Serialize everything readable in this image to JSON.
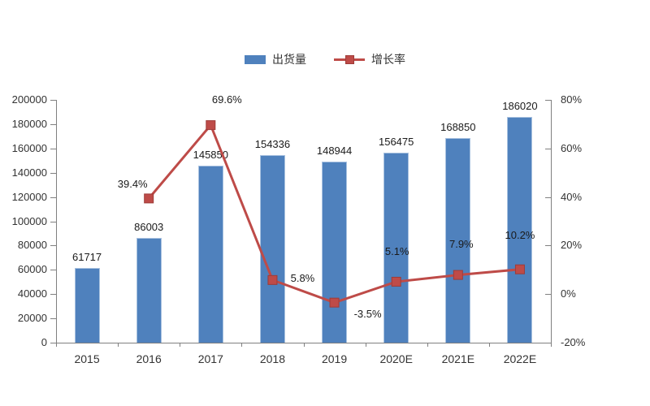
{
  "chart_data": {
    "type": "combo-bar-line",
    "title": "",
    "categories": [
      "2015",
      "2016",
      "2017",
      "2018",
      "2019",
      "2020E",
      "2021E",
      "2022E"
    ],
    "series": [
      {
        "name": "出货量",
        "type": "bar",
        "axis": "left",
        "color": "#4F81BD",
        "values": [
          61717,
          86003,
          145850,
          154336,
          148944,
          156475,
          168850,
          186020
        ],
        "labels": [
          "61717",
          "86003",
          "145850",
          "154336",
          "148944",
          "156475",
          "168850",
          "186020"
        ]
      },
      {
        "name": "增长率",
        "type": "line",
        "axis": "right",
        "color": "#BE4B48",
        "values": [
          null,
          39.4,
          69.6,
          5.8,
          -3.5,
          5.1,
          7.9,
          10.2
        ],
        "labels": [
          null,
          "39.4%",
          "69.6%",
          "5.8%",
          "-3.5%",
          "5.1%",
          "7.9%",
          "10.2%"
        ],
        "label_offsets": [
          null,
          {
            "dx": -20,
            "dy": -17
          },
          {
            "dx": 20,
            "dy": -31
          },
          {
            "dx": 37,
            "dy": -2
          },
          {
            "dx": 41,
            "dy": 14
          },
          {
            "dx": 1,
            "dy": -37
          },
          {
            "dx": 4,
            "dy": -38
          },
          {
            "dx": 0,
            "dy": -42
          }
        ]
      }
    ],
    "left_axis": {
      "min": 0,
      "max": 200000,
      "step": 20000,
      "tick_labels": [
        "0",
        "20000",
        "40000",
        "60000",
        "80000",
        "100000",
        "120000",
        "140000",
        "160000",
        "180000",
        "200000"
      ]
    },
    "right_axis": {
      "min": -20,
      "max": 80,
      "step": 20,
      "suffix": "%",
      "tick_labels": [
        "-20%",
        "0%",
        "20%",
        "40%",
        "60%",
        "80%"
      ]
    },
    "legend": {
      "position": "top-center",
      "items": [
        "出货量",
        "增长率"
      ]
    },
    "grid": false,
    "background": "#ffffff",
    "axis_color": "#808080"
  }
}
